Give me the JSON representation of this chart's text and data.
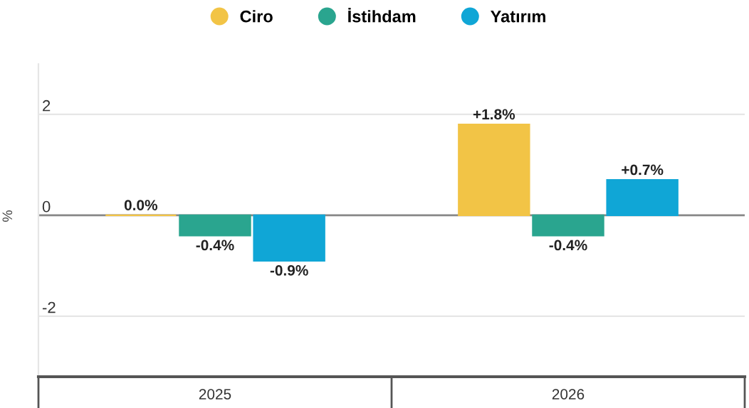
{
  "chart_data": {
    "type": "bar",
    "categories": [
      "2025",
      "2026"
    ],
    "ylabel": "%",
    "series": [
      {
        "name": "Ciro",
        "color": "#f2c446",
        "values": [
          0.0,
          1.8
        ],
        "value_labels": [
          "0.0%",
          "+1.8%"
        ]
      },
      {
        "name": "İstihdam",
        "color": "#2aa58f",
        "values": [
          -0.4,
          -0.4
        ],
        "value_labels": [
          "-0.4%",
          "-0.4%"
        ]
      },
      {
        "name": "Yatırım",
        "color": "#10a6d6",
        "values": [
          -0.9,
          0.7
        ],
        "value_labels": [
          "-0.9%",
          "+0.7%"
        ]
      }
    ],
    "ylim": [
      -3.2,
      3
    ],
    "yticks": [
      -2,
      0,
      2
    ],
    "grid": "y",
    "legend": "top"
  }
}
